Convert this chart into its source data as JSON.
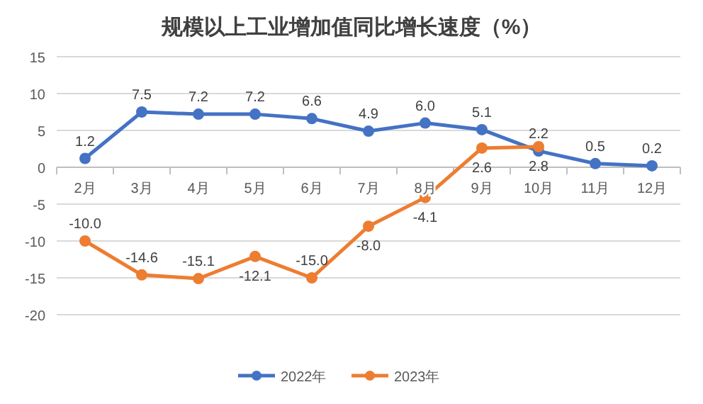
{
  "chart_data": {
    "type": "line",
    "title": "规模以上工业增加值同比增长速度（%）",
    "categories": [
      "2月",
      "3月",
      "4月",
      "5月",
      "6月",
      "7月",
      "8月",
      "9月",
      "10月",
      "11月",
      "12月"
    ],
    "series": [
      {
        "name": "2022年",
        "color": "#4472c4",
        "values": [
          1.2,
          7.5,
          7.2,
          7.2,
          6.6,
          4.9,
          6.0,
          5.1,
          2.2,
          0.5,
          0.2
        ],
        "value_labels": [
          "1.2",
          "7.5",
          "7.2",
          "7.2",
          "6.6",
          "4.9",
          "6.0",
          "5.1",
          "2.2",
          "0.5",
          "0.2"
        ]
      },
      {
        "name": "2023年",
        "color": "#ed7d31",
        "values": [
          -10.0,
          -14.6,
          -15.1,
          -12.1,
          -15.0,
          -8.0,
          -4.1,
          2.6,
          2.8,
          null,
          null
        ],
        "value_labels": [
          "-10.0",
          "-14.6",
          "-15.1",
          "-12.1",
          "-15.0",
          "-8.0",
          "-4.1",
          "2.6",
          "2.8",
          null,
          null
        ]
      }
    ],
    "ylim": [
      -20,
      15
    ],
    "yticks": [
      -20,
      -15,
      -10,
      -5,
      0,
      5,
      10,
      15
    ],
    "grid": "y",
    "legend": "bottom",
    "marker": "circle",
    "line_style": "solid"
  }
}
